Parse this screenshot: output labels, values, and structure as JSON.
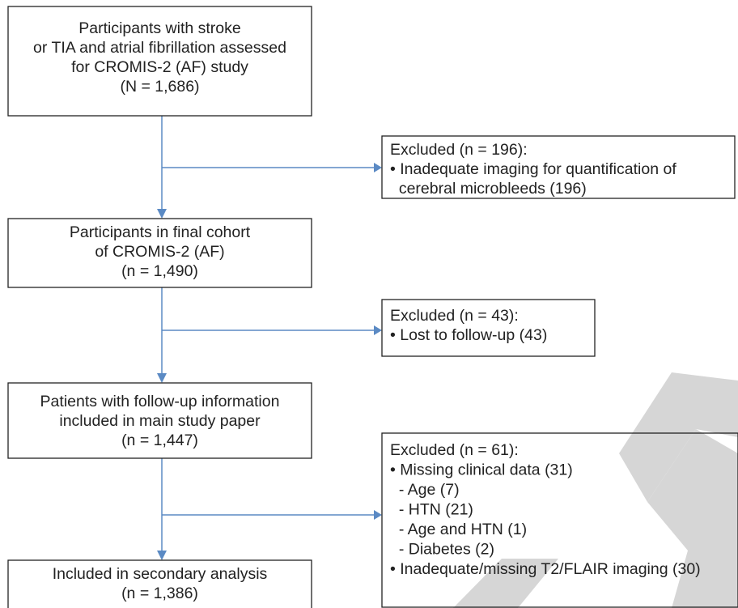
{
  "nodes": [
    {
      "lines": [
        "Participants with stroke",
        "or TIA and atrial fibrillation assessed",
        "for CROMIS-2 (AF) study",
        "(N = 1,686)"
      ]
    },
    {
      "lines": [
        "Excluded (n = 196):",
        "• Inadequate imaging for quantification of",
        "  cerebral microbleeds (196)"
      ]
    },
    {
      "lines": [
        "Participants in final cohort",
        "of CROMIS-2 (AF)",
        "(n = 1,490)"
      ]
    },
    {
      "lines": [
        "Excluded (n = 43):",
        "• Lost to follow-up (43)"
      ]
    },
    {
      "lines": [
        "Patients with follow-up information",
        "included in main study paper",
        "(n = 1,447)"
      ]
    },
    {
      "lines": [
        "Excluded (n = 61):",
        "• Missing clinical data (31)",
        "  - Age (7)",
        "  - HTN (21)",
        "  - Age and HTN (1)",
        "  - Diabetes (2)",
        "• Inadequate/missing T2/FLAIR imaging (30)"
      ]
    },
    {
      "lines": [
        "Included in secondary analysis",
        "(n = 1,386)"
      ]
    }
  ]
}
